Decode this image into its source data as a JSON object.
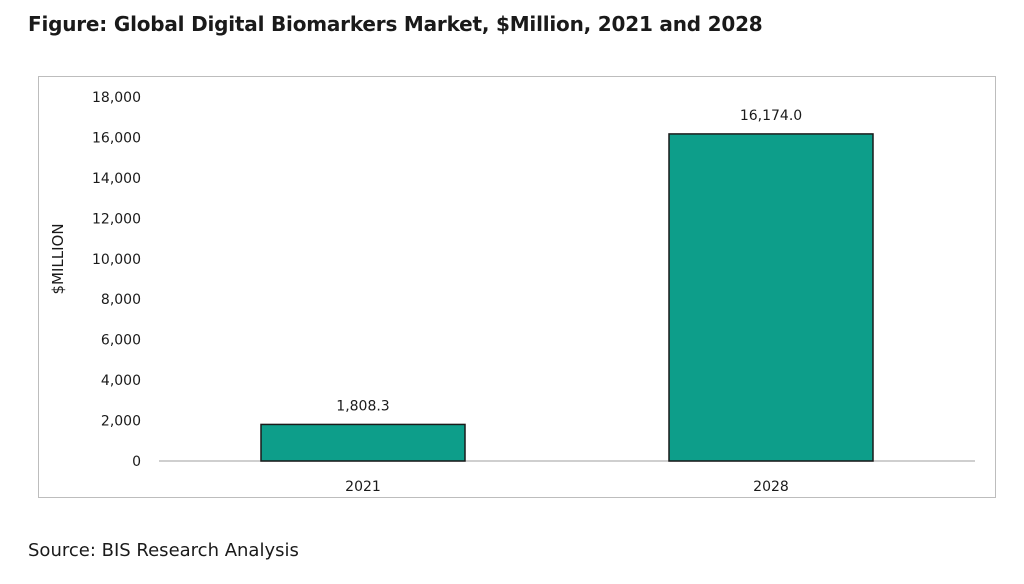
{
  "figure": {
    "title": "Figure: Global Digital Biomarkers Market, $Million, 2021 and 2028",
    "source": "Source: BIS Research Analysis"
  },
  "colors": {
    "bar_fill": "#0d9e8a",
    "bar_stroke": "#1a1a1a",
    "axis_line": "#bfbfbf",
    "frame_border": "#bdbdbd",
    "text": "#1a1a1a"
  },
  "chart_data": {
    "type": "bar",
    "title": "",
    "xlabel": "",
    "ylabel": "$MILLION",
    "categories": [
      "2021",
      "2028"
    ],
    "values": [
      1808.3,
      16174.0
    ],
    "data_labels": [
      "1,808.3",
      "16,174.0"
    ],
    "ylim": [
      0,
      18000
    ],
    "yticks": [
      0,
      2000,
      4000,
      6000,
      8000,
      10000,
      12000,
      14000,
      16000,
      18000
    ],
    "ytick_labels": [
      "0",
      "2,000",
      "4,000",
      "6,000",
      "8,000",
      "10,000",
      "12,000",
      "14,000",
      "16,000",
      "18,000"
    ],
    "grid": false,
    "legend": "none"
  }
}
